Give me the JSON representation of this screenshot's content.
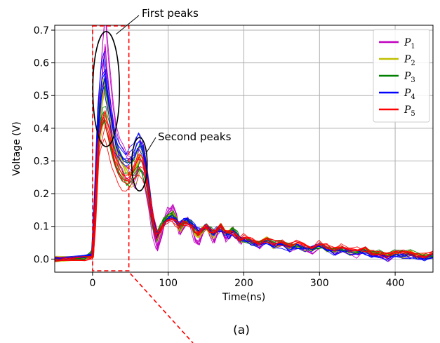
{
  "chart_data": {
    "type": "line",
    "title": "",
    "xlabel": "Time(ns)",
    "ylabel": "Voltage (V)",
    "xlim": [
      -50,
      450
    ],
    "ylim": [
      -0.04,
      0.715
    ],
    "xticks": [
      0,
      100,
      200,
      300,
      400
    ],
    "yticks": [
      0.0,
      0.1,
      0.2,
      0.3,
      0.4,
      0.5,
      0.6,
      0.7
    ],
    "xtick_labels": [
      "0",
      "100",
      "200",
      "300",
      "400"
    ],
    "ytick_labels": [
      "0.0",
      "0.1",
      "0.2",
      "0.3",
      "0.4",
      "0.5",
      "0.6",
      "0.7"
    ],
    "grid": true,
    "legend_position": "top-right",
    "colors": [
      "#bf00bf",
      "#bfbf00",
      "#008000",
      "#0000ff",
      "#ff0000"
    ],
    "series": [
      {
        "name": "P1",
        "label_main": "P",
        "label_sub": "1",
        "color": "#bf00bf",
        "x": [
          -50,
          -10,
          0,
          3,
          8,
          12,
          16,
          18,
          22,
          26,
          30,
          35,
          40,
          45,
          50,
          55,
          58,
          62,
          66,
          70,
          75,
          80,
          85,
          90,
          95,
          100,
          105,
          110,
          115,
          120,
          125,
          130,
          135,
          140,
          145,
          150,
          155,
          160,
          165,
          170,
          175,
          180,
          185,
          190,
          195,
          200,
          210,
          220,
          230,
          240,
          250,
          260,
          270,
          280,
          290,
          300,
          310,
          320,
          330,
          340,
          350,
          360,
          370,
          380,
          390,
          400,
          410,
          420,
          430,
          440,
          450
        ],
        "y": [
          0.0,
          0.005,
          0.01,
          0.15,
          0.45,
          0.58,
          0.67,
          0.6,
          0.5,
          0.42,
          0.36,
          0.32,
          0.3,
          0.28,
          0.27,
          0.26,
          0.28,
          0.32,
          0.3,
          0.25,
          0.18,
          0.08,
          0.03,
          0.07,
          0.12,
          0.15,
          0.16,
          0.13,
          0.08,
          0.1,
          0.12,
          0.1,
          0.06,
          0.05,
          0.08,
          0.1,
          0.07,
          0.05,
          0.08,
          0.09,
          0.06,
          0.07,
          0.09,
          0.07,
          0.05,
          0.06,
          0.05,
          0.04,
          0.06,
          0.04,
          0.05,
          0.03,
          0.04,
          0.03,
          0.02,
          0.04,
          0.03,
          0.02,
          0.03,
          0.02,
          0.01,
          0.03,
          0.02,
          0.01,
          0.0,
          0.02,
          0.01,
          0.02,
          0.01,
          0.0,
          0.01
        ]
      },
      {
        "name": "P2",
        "label_main": "P",
        "label_sub": "2",
        "color": "#bfbf00",
        "x": [
          -50,
          -10,
          0,
          3,
          8,
          12,
          16,
          18,
          22,
          26,
          30,
          35,
          40,
          45,
          50,
          55,
          58,
          62,
          66,
          70,
          75,
          80,
          85,
          90,
          95,
          100,
          105,
          110,
          115,
          120,
          125,
          130,
          135,
          140,
          145,
          150,
          155,
          160,
          165,
          170,
          175,
          180,
          185,
          190,
          195,
          200,
          210,
          220,
          230,
          240,
          250,
          260,
          270,
          280,
          290,
          300,
          310,
          320,
          330,
          340,
          350,
          360,
          370,
          380,
          390,
          400,
          410,
          420,
          430,
          440,
          450
        ],
        "y": [
          0.0,
          0.004,
          0.01,
          0.14,
          0.38,
          0.45,
          0.5,
          0.47,
          0.42,
          0.37,
          0.33,
          0.3,
          0.27,
          0.25,
          0.25,
          0.26,
          0.27,
          0.3,
          0.29,
          0.25,
          0.18,
          0.1,
          0.06,
          0.09,
          0.12,
          0.13,
          0.14,
          0.12,
          0.09,
          0.11,
          0.12,
          0.1,
          0.08,
          0.07,
          0.09,
          0.1,
          0.08,
          0.07,
          0.09,
          0.1,
          0.08,
          0.08,
          0.09,
          0.07,
          0.06,
          0.06,
          0.05,
          0.05,
          0.06,
          0.04,
          0.05,
          0.04,
          0.04,
          0.03,
          0.03,
          0.04,
          0.03,
          0.03,
          0.03,
          0.02,
          0.02,
          0.03,
          0.02,
          0.02,
          0.01,
          0.02,
          0.01,
          0.02,
          0.01,
          0.01,
          0.01
        ]
      },
      {
        "name": "P3",
        "label_main": "P",
        "label_sub": "3",
        "color": "#008000",
        "x": [
          -50,
          -10,
          0,
          3,
          8,
          12,
          16,
          18,
          22,
          26,
          30,
          35,
          40,
          45,
          50,
          55,
          58,
          62,
          66,
          70,
          75,
          80,
          85,
          90,
          95,
          100,
          105,
          110,
          115,
          120,
          125,
          130,
          135,
          140,
          145,
          150,
          155,
          160,
          165,
          170,
          175,
          180,
          185,
          190,
          195,
          200,
          210,
          220,
          230,
          240,
          250,
          260,
          270,
          280,
          290,
          300,
          310,
          320,
          330,
          340,
          350,
          360,
          370,
          380,
          390,
          400,
          410,
          420,
          430,
          440,
          450
        ],
        "y": [
          0.0,
          0.006,
          0.02,
          0.16,
          0.4,
          0.46,
          0.48,
          0.45,
          0.41,
          0.36,
          0.32,
          0.29,
          0.27,
          0.26,
          0.26,
          0.27,
          0.29,
          0.31,
          0.3,
          0.26,
          0.19,
          0.11,
          0.07,
          0.1,
          0.12,
          0.13,
          0.14,
          0.12,
          0.1,
          0.11,
          0.12,
          0.11,
          0.09,
          0.08,
          0.09,
          0.1,
          0.09,
          0.08,
          0.09,
          0.1,
          0.08,
          0.08,
          0.09,
          0.08,
          0.06,
          0.06,
          0.05,
          0.05,
          0.06,
          0.05,
          0.05,
          0.04,
          0.04,
          0.04,
          0.03,
          0.04,
          0.03,
          0.03,
          0.03,
          0.02,
          0.02,
          0.03,
          0.02,
          0.02,
          0.01,
          0.02,
          0.02,
          0.02,
          0.01,
          0.01,
          0.01
        ]
      },
      {
        "name": "P4",
        "label_main": "P",
        "label_sub": "4",
        "color": "#0000ff",
        "x": [
          -50,
          -10,
          0,
          3,
          8,
          12,
          16,
          18,
          22,
          26,
          30,
          35,
          40,
          45,
          50,
          55,
          58,
          62,
          66,
          70,
          75,
          80,
          85,
          90,
          95,
          100,
          105,
          110,
          115,
          120,
          125,
          130,
          135,
          140,
          145,
          150,
          155,
          160,
          165,
          170,
          175,
          180,
          185,
          190,
          195,
          200,
          210,
          220,
          230,
          240,
          250,
          260,
          270,
          280,
          290,
          300,
          310,
          320,
          330,
          340,
          350,
          360,
          370,
          380,
          390,
          400,
          410,
          420,
          430,
          440,
          450
        ],
        "y": [
          0.0,
          0.003,
          0.01,
          0.15,
          0.42,
          0.53,
          0.56,
          0.52,
          0.46,
          0.4,
          0.35,
          0.32,
          0.3,
          0.29,
          0.3,
          0.32,
          0.34,
          0.35,
          0.33,
          0.28,
          0.2,
          0.12,
          0.07,
          0.09,
          0.11,
          0.12,
          0.13,
          0.12,
          0.11,
          0.12,
          0.12,
          0.11,
          0.1,
          0.09,
          0.09,
          0.1,
          0.09,
          0.08,
          0.09,
          0.09,
          0.08,
          0.07,
          0.08,
          0.07,
          0.06,
          0.06,
          0.05,
          0.04,
          0.05,
          0.04,
          0.04,
          0.03,
          0.04,
          0.03,
          0.03,
          0.04,
          0.03,
          0.02,
          0.03,
          0.02,
          0.02,
          0.02,
          0.01,
          0.01,
          0.0,
          0.01,
          0.01,
          0.01,
          0.0,
          0.0,
          0.01
        ]
      },
      {
        "name": "P5",
        "label_main": "P",
        "label_sub": "5",
        "color": "#ff0000",
        "x": [
          -50,
          -10,
          0,
          3,
          8,
          12,
          16,
          18,
          22,
          26,
          30,
          35,
          40,
          45,
          50,
          55,
          58,
          62,
          66,
          70,
          75,
          80,
          85,
          90,
          95,
          100,
          105,
          110,
          115,
          120,
          125,
          130,
          135,
          140,
          145,
          150,
          155,
          160,
          165,
          170,
          175,
          180,
          185,
          190,
          195,
          200,
          210,
          220,
          230,
          240,
          250,
          260,
          270,
          280,
          290,
          300,
          310,
          320,
          330,
          340,
          350,
          360,
          370,
          380,
          390,
          400,
          410,
          420,
          430,
          440,
          450
        ],
        "y": [
          0.0,
          0.002,
          0.0,
          0.1,
          0.33,
          0.37,
          0.4,
          0.38,
          0.35,
          0.31,
          0.28,
          0.25,
          0.23,
          0.22,
          0.23,
          0.25,
          0.27,
          0.28,
          0.27,
          0.24,
          0.18,
          0.11,
          0.07,
          0.09,
          0.11,
          0.12,
          0.12,
          0.11,
          0.1,
          0.11,
          0.11,
          0.1,
          0.09,
          0.08,
          0.09,
          0.1,
          0.09,
          0.08,
          0.09,
          0.1,
          0.08,
          0.08,
          0.08,
          0.07,
          0.06,
          0.07,
          0.06,
          0.05,
          0.06,
          0.05,
          0.05,
          0.04,
          0.05,
          0.04,
          0.04,
          0.05,
          0.04,
          0.03,
          0.04,
          0.03,
          0.03,
          0.03,
          0.02,
          0.02,
          0.01,
          0.02,
          0.02,
          0.02,
          0.01,
          0.01,
          0.02
        ]
      }
    ],
    "annotations": [
      {
        "text": "First peaks",
        "target_x": 18,
        "target_y": 0.52
      },
      {
        "text": "Second peaks",
        "target_x": 62,
        "target_y": 0.29
      }
    ],
    "highlight_region": {
      "x": [
        0,
        48
      ],
      "y": [
        -0.04,
        0.715
      ],
      "color": "#ff0000",
      "style": "dashed"
    },
    "caption": "(a)"
  }
}
